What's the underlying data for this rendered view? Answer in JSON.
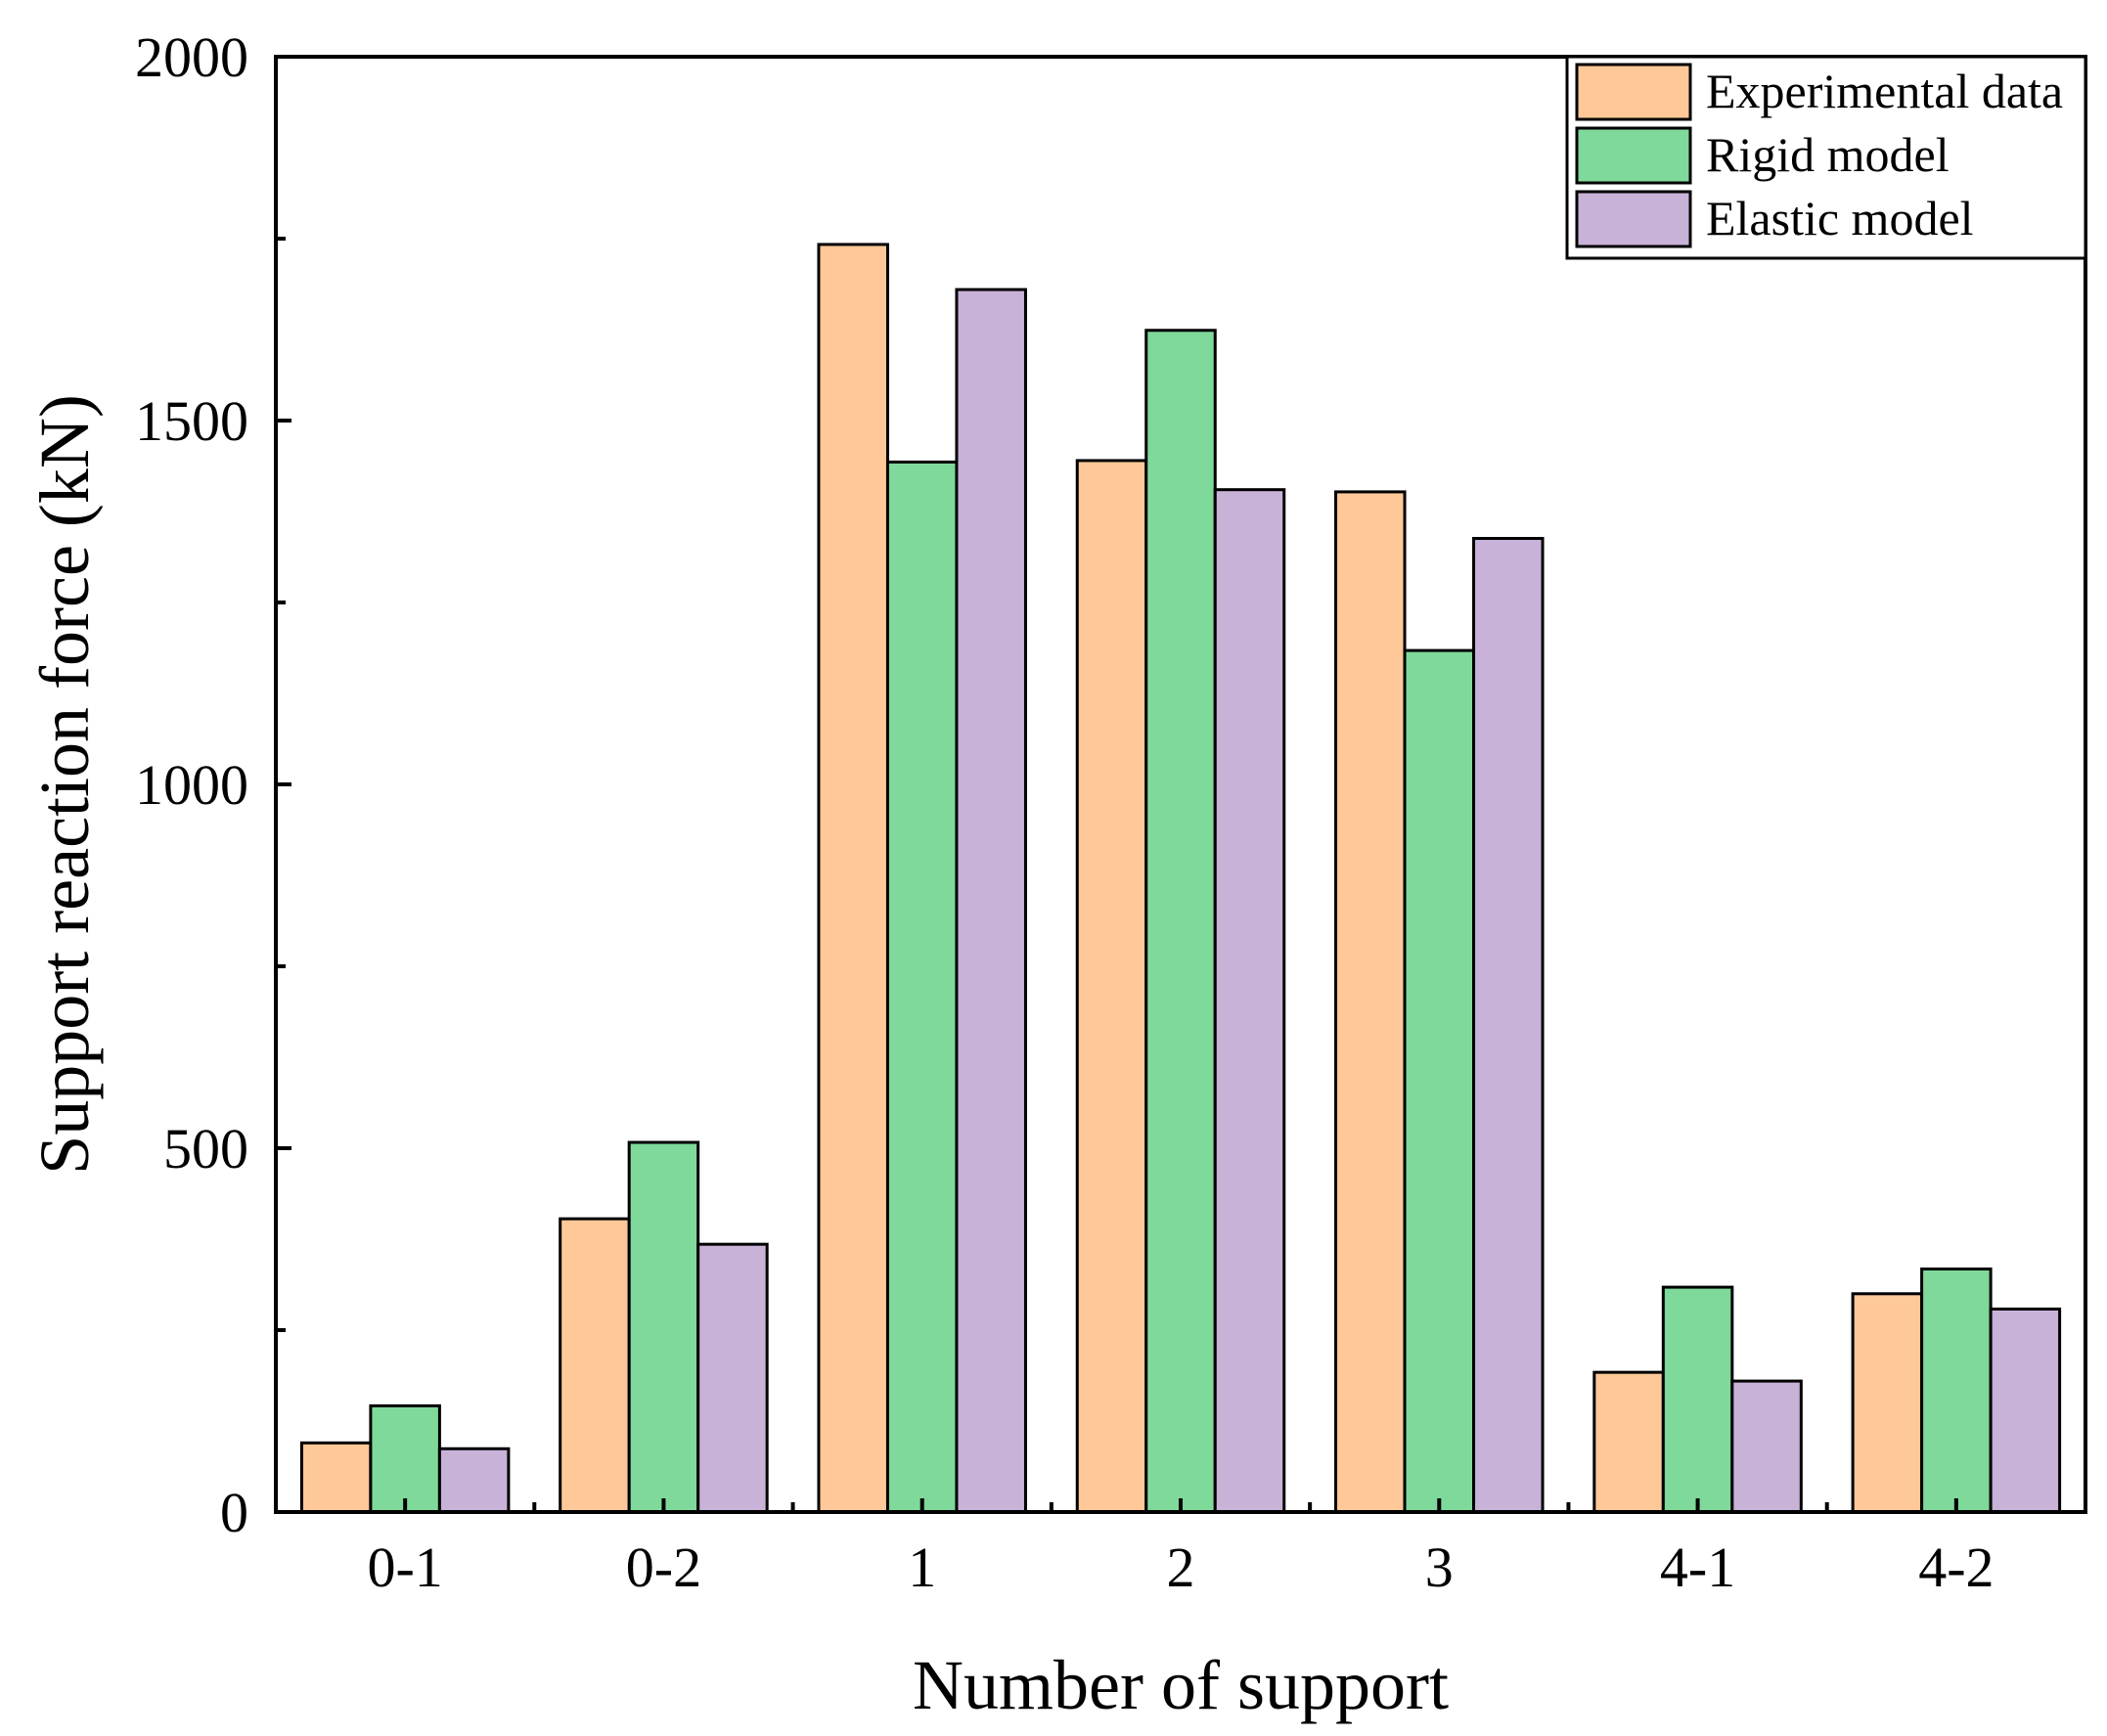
{
  "chart_data": {
    "type": "bar",
    "title": "",
    "xlabel": "Number of support",
    "ylabel": "Support reaction force (kN)",
    "ylim": [
      0,
      2000
    ],
    "yticks": [
      0,
      500,
      1000,
      1500,
      2000
    ],
    "categories": [
      "0-1",
      "0-2",
      "1",
      "2",
      "3",
      "4-1",
      "4-2"
    ],
    "series": [
      {
        "name": "Experimental data",
        "color": "#FFC898",
        "values": [
          95,
          403,
          1742,
          1445,
          1402,
          192,
          300
        ]
      },
      {
        "name": "Rigid model",
        "color": "#7FD99A",
        "values": [
          146,
          508,
          1443,
          1624,
          1184,
          309,
          334
        ]
      },
      {
        "name": "Elastic model",
        "color": "#C8B2D8",
        "values": [
          87,
          368,
          1680,
          1405,
          1338,
          180,
          279
        ]
      }
    ],
    "legend_position": "top-right",
    "grid": false
  }
}
